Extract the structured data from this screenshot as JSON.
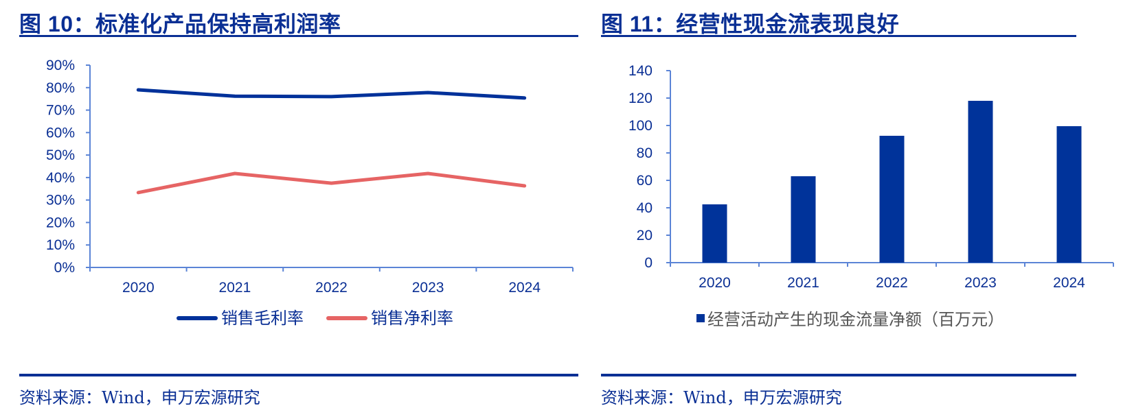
{
  "figures": [
    {
      "title": "图 10：标准化产品保持高利润率",
      "source": "资料来源：Wind，申万宏源研究"
    },
    {
      "title": "图 11：经营性现金流表现良好",
      "source": "资料来源：Wind，申万宏源研究"
    }
  ],
  "colors": {
    "title": "#0a2f94",
    "axis": "#5b84d6",
    "gross_margin": "#00319a",
    "net_margin": "#e66464",
    "bar": "#00339a"
  },
  "chart_data": [
    {
      "type": "line",
      "title": "标准化产品保持高利润率",
      "xlabel": "",
      "ylabel": "",
      "categories": [
        "2020",
        "2021",
        "2022",
        "2023",
        "2024"
      ],
      "yticks": [
        "0%",
        "10%",
        "20%",
        "30%",
        "40%",
        "50%",
        "60%",
        "70%",
        "80%",
        "90%"
      ],
      "ylim": [
        0,
        90
      ],
      "grid": false,
      "legend_position": "bottom",
      "series": [
        {
          "name": "销售毛利率",
          "values": [
            79.0,
            76.2,
            76.0,
            77.8,
            75.4
          ]
        },
        {
          "name": "销售净利率",
          "values": [
            33.3,
            41.8,
            37.5,
            41.8,
            36.3
          ]
        }
      ]
    },
    {
      "type": "bar",
      "title": "经营性现金流表现良好",
      "xlabel": "",
      "ylabel": "",
      "categories": [
        "2020",
        "2021",
        "2022",
        "2023",
        "2024"
      ],
      "yticks": [
        "0",
        "20",
        "40",
        "60",
        "80",
        "100",
        "120",
        "140"
      ],
      "ylim": [
        0,
        140
      ],
      "grid": false,
      "legend_position": "bottom",
      "series": [
        {
          "name": "经营活动产生的现金流量净额（百万元）",
          "values": [
            42.5,
            63,
            92.5,
            118,
            99.5
          ]
        }
      ]
    }
  ]
}
